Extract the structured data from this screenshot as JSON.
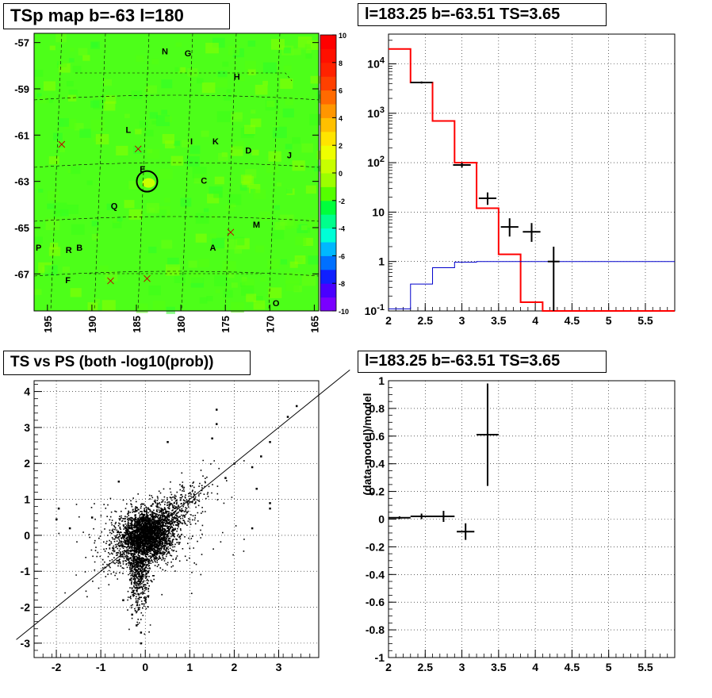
{
  "titles": {
    "map": "TSp map b=-63 l=180",
    "spectrum": "l=183.25 b=-63.51 TS=3.65",
    "scatter": "TS vs PS (both -log10(prob))",
    "residual": "l=183.25 b=-63.51 TS=3.65"
  },
  "chart_data": [
    {
      "type": "heatmap",
      "title": "TSp map b=-63 l=180",
      "xlabel": "",
      "ylabel": "",
      "x_tick_labels": [
        "195",
        "190",
        "185",
        "180",
        "175",
        "170",
        "165"
      ],
      "y_tick_labels": [
        "-57",
        "-59",
        "-61",
        "-63",
        "-65",
        "-67"
      ],
      "xlim": [
        196.5,
        164.5
      ],
      "ylim": [
        -68.6,
        -56.6
      ],
      "colorbar_range": [
        -10,
        10
      ],
      "colorbar_tick_labels": [
        "10",
        "8",
        "6",
        "4",
        "2",
        "0",
        "-2",
        "-4",
        "-6",
        "-8",
        "-10"
      ],
      "dominant_value": 0,
      "colors": {
        "background": "#4dff19",
        "colorbar": [
          "#7a00ff",
          "#4a00ff",
          "#1020ff",
          "#0070ff",
          "#00b8ff",
          "#00ffd6",
          "#00ff8c",
          "#00ff3c",
          "#55ff00",
          "#9cff00",
          "#c8ff00",
          "#eeff00",
          "#ffe400",
          "#ffc000",
          "#ff9600",
          "#ff6a00",
          "#ff4000",
          "#ff2200",
          "#ff1000",
          "#ff0000"
        ]
      },
      "source_labels": [
        {
          "text": "N",
          "l": 181.8,
          "b": -57.5
        },
        {
          "text": "G",
          "l": 179.2,
          "b": -57.6
        },
        {
          "text": "H",
          "l": 173.7,
          "b": -58.6
        },
        {
          "text": "L",
          "l": 185.9,
          "b": -60.9
        },
        {
          "text": "I",
          "l": 178.8,
          "b": -61.4
        },
        {
          "text": "K",
          "l": 176.1,
          "b": -61.4
        },
        {
          "text": "D",
          "l": 172.4,
          "b": -61.8
        },
        {
          "text": "J",
          "l": 167.8,
          "b": -62.0
        },
        {
          "text": "E",
          "l": 184.3,
          "b": -62.6
        },
        {
          "text": "C",
          "l": 177.4,
          "b": -63.1
        },
        {
          "text": "Q",
          "l": 187.5,
          "b": -64.2
        },
        {
          "text": "M",
          "l": 171.5,
          "b": -65.0
        },
        {
          "text": "P",
          "l": 196.0,
          "b": -66.0
        },
        {
          "text": "R",
          "l": 192.6,
          "b": -66.1
        },
        {
          "text": "B",
          "l": 191.4,
          "b": -66.0
        },
        {
          "text": "A",
          "l": 176.4,
          "b": -66.0
        },
        {
          "text": "F",
          "l": 192.7,
          "b": -67.4
        },
        {
          "text": "O",
          "l": 169.3,
          "b": -68.4
        }
      ],
      "cross_markers": [
        {
          "l": 193.4,
          "b": -61.4
        },
        {
          "l": 184.8,
          "b": -61.6
        },
        {
          "l": 174.4,
          "b": -65.2
        },
        {
          "l": 187.9,
          "b": -67.3
        },
        {
          "l": 183.8,
          "b": -67.2
        }
      ],
      "circle_marker": {
        "l": 183.8,
        "b": -63.0
      }
    },
    {
      "type": "line",
      "title": "l=183.25 b=-63.51 TS=3.65",
      "xlabel": "",
      "ylabel": "",
      "log_y": true,
      "xlim": [
        2,
        5.9
      ],
      "ylim": [
        0.1,
        40000
      ],
      "x_tick_labels": [
        "2",
        "2.5",
        "3",
        "3.5",
        "4",
        "4.5",
        "5",
        "5.5"
      ],
      "y_tick_labels": [
        "10^-1",
        "1",
        "10",
        "10^2",
        "10^3",
        "10^4"
      ],
      "grid": true,
      "series": [
        {
          "type": "step",
          "color": "#ff0000",
          "edges": [
            2,
            2.3,
            2.6,
            2.9,
            3.2,
            3.5,
            3.8,
            4.1,
            5.9
          ],
          "values": [
            20000,
            4200,
            700,
            100,
            12,
            1.4,
            0.15,
            0.1
          ]
        },
        {
          "type": "step",
          "color": "#0000cc",
          "edges": [
            2,
            2.3,
            2.6,
            2.9,
            3.2,
            5.9
          ],
          "values": [
            0.11,
            0.35,
            0.75,
            0.97,
            1.0
          ]
        },
        {
          "type": "errorbar",
          "color": "#000000",
          "points": [
            {
              "x": 2.45,
              "xerr": 0.15,
              "y": 4200,
              "ylo": 4000,
              "yhi": 4400
            },
            {
              "x": 3.0,
              "xerr": 0.12,
              "y": 90,
              "ylo": 80,
              "yhi": 100
            },
            {
              "x": 3.35,
              "xerr": 0.12,
              "y": 19,
              "ylo": 14,
              "yhi": 25
            },
            {
              "x": 3.65,
              "xerr": 0.12,
              "y": 5,
              "ylo": 3.2,
              "yhi": 7.5
            },
            {
              "x": 3.95,
              "xerr": 0.12,
              "y": 4,
              "ylo": 2.5,
              "yhi": 6
            },
            {
              "x": 4.25,
              "xerr": 0.08,
              "y": 1,
              "ylo": 0.1,
              "yhi": 2
            }
          ]
        }
      ]
    },
    {
      "type": "scatter",
      "title": "TS vs PS (both -log10(prob))",
      "xlabel": "",
      "ylabel": "",
      "xlim": [
        -2.5,
        3.9
      ],
      "ylim": [
        -3.4,
        4.3
      ],
      "x_tick_labels": [
        "-2",
        "-1",
        "0",
        "1",
        "2",
        "3"
      ],
      "y_tick_labels": [
        "-3",
        "-2",
        "-1",
        "0",
        "1",
        "2",
        "3",
        "4"
      ],
      "grid": true,
      "reference_line": {
        "slope": 1,
        "intercept": 0
      },
      "cluster": {
        "center": [
          0.0,
          0.0
        ],
        "approx_points": 4000
      },
      "outliers": [
        [
          3.4,
          3.6
        ],
        [
          3.2,
          3.3
        ],
        [
          2.8,
          2.6
        ],
        [
          2.6,
          2.2
        ],
        [
          2.4,
          1.9
        ],
        [
          2.5,
          1.3
        ],
        [
          2.8,
          0.9
        ],
        [
          2.8,
          0.75
        ],
        [
          1.6,
          3.5
        ],
        [
          1.6,
          3.1
        ],
        [
          0.5,
          2.6
        ],
        [
          1.5,
          2.7
        ],
        [
          2.0,
          2.0
        ],
        [
          1.8,
          1.6
        ],
        [
          -1.95,
          0.75
        ],
        [
          -2.0,
          0.45
        ],
        [
          -1.2,
          0.5
        ],
        [
          -0.6,
          1.5
        ],
        [
          -0.2,
          -2.5
        ],
        [
          -0.1,
          -2.7
        ],
        [
          -0.3,
          -2.2
        ],
        [
          -0.1,
          -3.0
        ],
        [
          -0.5,
          -1.8
        ],
        [
          2.4,
          0.2
        ],
        [
          1.1,
          1.0
        ],
        [
          -1.7,
          0.2
        ]
      ]
    },
    {
      "type": "line",
      "title": "l=183.25 b=-63.51 TS=3.65",
      "xlabel": "",
      "ylabel": "(data-model)/model",
      "xlim": [
        2,
        5.9
      ],
      "ylim": [
        -1,
        1
      ],
      "x_tick_labels": [
        "2",
        "2.5",
        "3",
        "3.5",
        "4",
        "4.5",
        "5",
        "5.5"
      ],
      "y_tick_labels": [
        "-1",
        "-0.8",
        "-0.6",
        "-0.4",
        "-0.2",
        "0",
        "0.2",
        "0.4",
        "0.6",
        "0.8",
        "1"
      ],
      "grid": true,
      "series": [
        {
          "type": "errorbar",
          "color": "#000000",
          "points": [
            {
              "x": 2.15,
              "xerr": 0.15,
              "y": 0.01,
              "ylo": 0.0,
              "yhi": 0.02
            },
            {
              "x": 2.45,
              "xerr": 0.15,
              "y": 0.02,
              "ylo": 0.0,
              "yhi": 0.04
            },
            {
              "x": 2.75,
              "xerr": 0.15,
              "y": 0.02,
              "ylo": -0.02,
              "yhi": 0.06
            },
            {
              "x": 3.05,
              "xerr": 0.12,
              "y": -0.09,
              "ylo": -0.15,
              "yhi": -0.03
            },
            {
              "x": 3.35,
              "xerr": 0.15,
              "y": 0.61,
              "ylo": 0.24,
              "yhi": 0.98
            }
          ]
        }
      ]
    }
  ]
}
